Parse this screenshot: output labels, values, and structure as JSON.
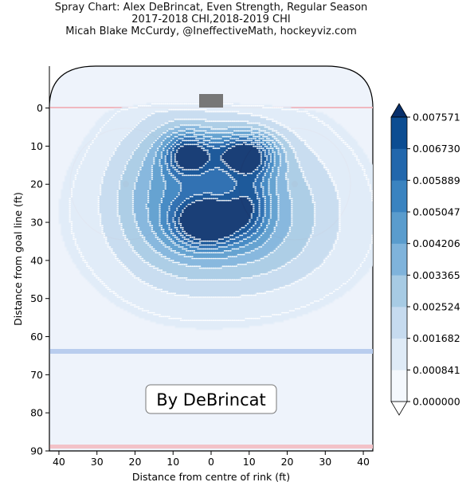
{
  "chart_data": {
    "type": "heatmap",
    "title_lines": [
      "Spray Chart: Alex DeBrincat, Even Strength, Regular Season",
      "2017-2018 CHI,2018-2019 CHI",
      "Micah Blake McCurdy, @IneffectiveMath, hockeyviz.com"
    ],
    "xlabel": "Distance from centre of rink (ft)",
    "ylabel": "Distance from goal line (ft)",
    "x_ticks": [
      40,
      30,
      20,
      10,
      0,
      10,
      20,
      30,
      40
    ],
    "x_tick_values": [
      -40,
      -30,
      -20,
      -10,
      0,
      10,
      20,
      30,
      40
    ],
    "y_ticks": [
      0,
      10,
      20,
      30,
      40,
      50,
      60,
      70,
      80,
      90
    ],
    "xlim": [
      -42.5,
      42.5
    ],
    "ylim": [
      90,
      -11
    ],
    "annotation": "By DeBrincat",
    "colorbar": {
      "levels": [
        "0.000000",
        "0.000841",
        "0.001682",
        "0.002524",
        "0.003365",
        "0.004206",
        "0.005047",
        "0.005889",
        "0.006730",
        "0.007571"
      ],
      "colors": [
        "#f4f8fd",
        "#dfebf7",
        "#c6dbef",
        "#a7cbe4",
        "#7fb3db",
        "#5a9ccd",
        "#3a83c0",
        "#2267ac",
        "#0c4d92",
        "#08306b"
      ],
      "extend": "both"
    },
    "density_peaks": [
      {
        "x": 10,
        "y": 11,
        "level": 8
      },
      {
        "x": -6,
        "y": 11,
        "level": 7
      },
      {
        "x": 0,
        "y": 30,
        "level": 8
      },
      {
        "x": 10,
        "y": 24,
        "level": 4
      }
    ]
  }
}
